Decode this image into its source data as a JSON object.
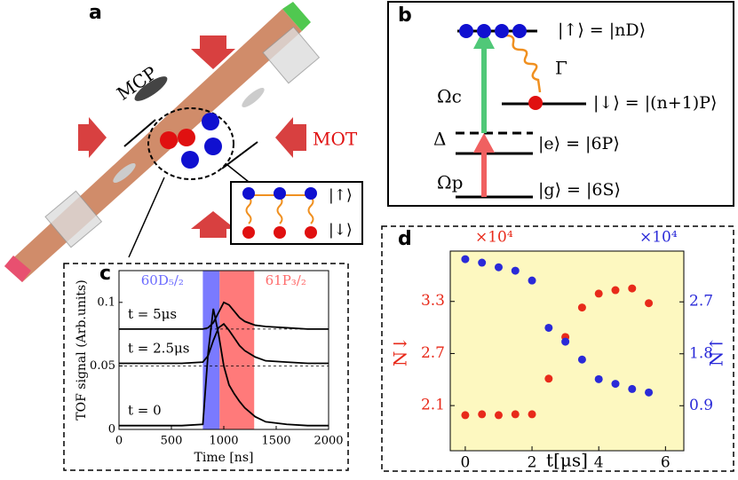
{
  "panel_a": {
    "label": "a",
    "mcp": "MCP",
    "mot": "MOT",
    "up": "|↑⟩",
    "down": "|↓⟩"
  },
  "panel_b": {
    "label": "b",
    "up": "|↑⟩ = |nD⟩",
    "gamma": "Γ",
    "omega_c": "Ωc",
    "down": "|↓⟩ = |(n+1)P⟩",
    "delta": "Δ",
    "e": "|e⟩ = |6P⟩",
    "omega_p": "Ωp",
    "g": "|g⟩ = |6S⟩"
  },
  "chart_data": [
    {
      "type": "line",
      "label": "c",
      "xlabel": "Time [ns]",
      "ylabel": "TOF signal (Arb.units)",
      "xlim": [
        0,
        2000
      ],
      "ylim": [
        0,
        0.125
      ],
      "xticks": [
        0,
        500,
        1000,
        1500,
        2000
      ],
      "yticks": [
        0,
        0.05,
        0.1
      ],
      "bands": [
        {
          "name": "60D₅/₂",
          "color": "#6b6bff",
          "range": [
            800,
            960
          ]
        },
        {
          "name": "61P₃/₂",
          "color": "#ff6b6b",
          "range": [
            960,
            1290
          ]
        }
      ],
      "hlines": [
        0.05,
        0.079
      ],
      "x": [
        0,
        200,
        400,
        600,
        800,
        850,
        900,
        950,
        1000,
        1050,
        1100,
        1150,
        1200,
        1300,
        1400,
        1600,
        1800,
        2000
      ],
      "series": [
        {
          "name": "t = 0",
          "color": "#000000",
          "values": [
            0.003,
            0.003,
            0.003,
            0.003,
            0.004,
            0.06,
            0.095,
            0.075,
            0.05,
            0.035,
            0.028,
            0.022,
            0.017,
            0.01,
            0.006,
            0.004,
            0.003,
            0.003
          ]
        },
        {
          "name": "t = 2.5μs",
          "color": "#000000",
          "values": [
            0.052,
            0.052,
            0.052,
            0.052,
            0.053,
            0.058,
            0.07,
            0.08,
            0.083,
            0.078,
            0.072,
            0.066,
            0.062,
            0.057,
            0.054,
            0.053,
            0.052,
            0.052
          ]
        },
        {
          "name": "t = 5μs",
          "color": "#000000",
          "values": [
            0.079,
            0.079,
            0.079,
            0.079,
            0.079,
            0.08,
            0.084,
            0.092,
            0.1,
            0.098,
            0.093,
            0.088,
            0.085,
            0.082,
            0.081,
            0.08,
            0.079,
            0.079
          ]
        }
      ]
    },
    {
      "type": "scatter",
      "label": "d",
      "xlabel": "t[μs]",
      "ylabel": "N↓",
      "y2label": "N↑",
      "ymultiplier": "×10⁴",
      "y2multiplier": "×10⁴",
      "background": "#fdf8c0",
      "xlim": [
        -0.45,
        6.55
      ],
      "ylim": [
        1.58,
        3.88
      ],
      "y2lim": [
        0.12,
        3.58
      ],
      "xticks": [
        0,
        2,
        4,
        6
      ],
      "yticks": [
        2.1,
        2.7,
        3.3
      ],
      "y2ticks": [
        0.9,
        1.8,
        2.7
      ],
      "x": [
        0,
        0.5,
        1,
        1.5,
        2,
        2.5,
        3,
        3.5,
        4,
        4.5,
        5,
        5.5
      ],
      "series": [
        {
          "name": "N↓",
          "color": "#e82a1a",
          "values": [
            1.99,
            2.0,
            1.99,
            2.0,
            2.0,
            2.41,
            2.89,
            3.23,
            3.39,
            3.43,
            3.45,
            3.28
          ]
        },
        {
          "name": "N↑",
          "color": "#2a2ad8",
          "axis": "y2",
          "values": [
            3.44,
            3.38,
            3.3,
            3.24,
            3.07,
            2.25,
            2.01,
            1.7,
            1.36,
            1.28,
            1.19,
            1.13
          ]
        }
      ]
    }
  ]
}
